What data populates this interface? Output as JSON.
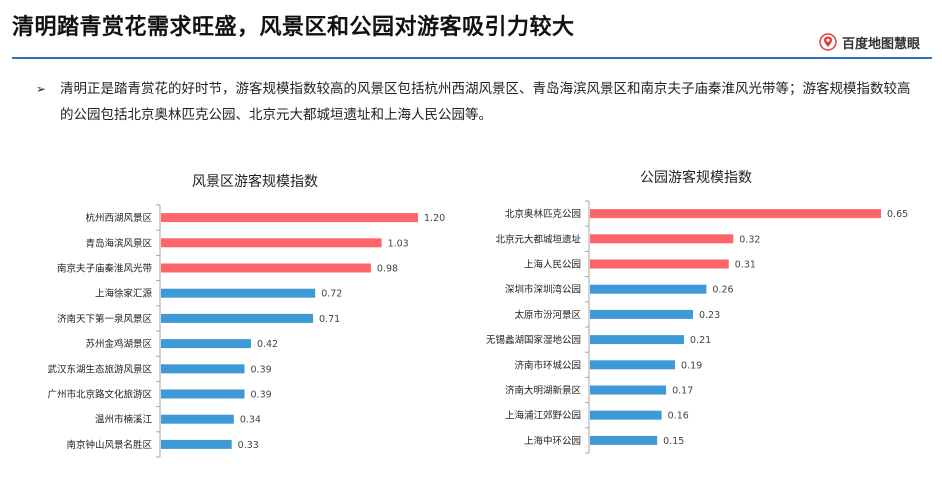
{
  "header": {
    "title": "清明踏青赏花需求旺盛，风景区和公园对游客吸引力较大",
    "brand": "百度地图慧眼"
  },
  "bullet": {
    "marker": "➢",
    "text": "清明正是踏青赏花的好时节，游客规模指数较高的风景区包括杭州西湖风景区、青岛海滨风景区和南京夫子庙秦淮风光带等；游客规模指数较高的公园包括北京奥林匹克公园、北京元大都城垣遗址和上海人民公园等。"
  },
  "colors": {
    "highlight": "#ff6469",
    "normal": "#3d9ad6",
    "rule": "#2e6fc7",
    "axis": "#a6a6a6"
  },
  "chart_data": [
    {
      "type": "bar",
      "orientation": "horizontal",
      "title": "风景区游客规模指数",
      "xlim": [
        0,
        1.2
      ],
      "highlight_top": 3,
      "categories": [
        "杭州西湖风景区",
        "青岛海滨风景区",
        "南京夫子庙秦淮风光带",
        "上海徐家汇源",
        "济南天下第一泉风景区",
        "苏州金鸡湖景区",
        "武汉东湖生态旅游风景区",
        "广州市北京路文化旅游区",
        "温州市楠溪江",
        "南京钟山风景名胜区"
      ],
      "value_labels": [
        "1.20",
        "1.03",
        "0.98",
        "0.72",
        "0.71",
        "0.42",
        "0.39",
        "0.39",
        "0.34",
        "0.33"
      ],
      "values": [
        1.2,
        1.03,
        0.98,
        0.72,
        0.71,
        0.42,
        0.39,
        0.39,
        0.34,
        0.33
      ]
    },
    {
      "type": "bar",
      "orientation": "horizontal",
      "title": "公园游客规模指数",
      "xlim": [
        0,
        0.65
      ],
      "highlight_top": 3,
      "categories": [
        "北京奥林匹克公园",
        "北京元大都城垣遗址",
        "上海人民公园",
        "深圳市深圳湾公园",
        "太原市汾河景区",
        "无锡蠡湖国家湿地公园",
        "济南市环城公园",
        "济南大明湖新景区",
        "上海浦江郊野公园",
        "上海中环公园"
      ],
      "value_labels": [
        "0.65",
        "0.32",
        "0.31",
        "0.26",
        "0.23",
        "0.21",
        "0.19",
        "0.17",
        "0.16",
        "0.15"
      ],
      "values": [
        0.65,
        0.32,
        0.31,
        0.26,
        0.23,
        0.21,
        0.19,
        0.17,
        0.16,
        0.15
      ]
    }
  ]
}
